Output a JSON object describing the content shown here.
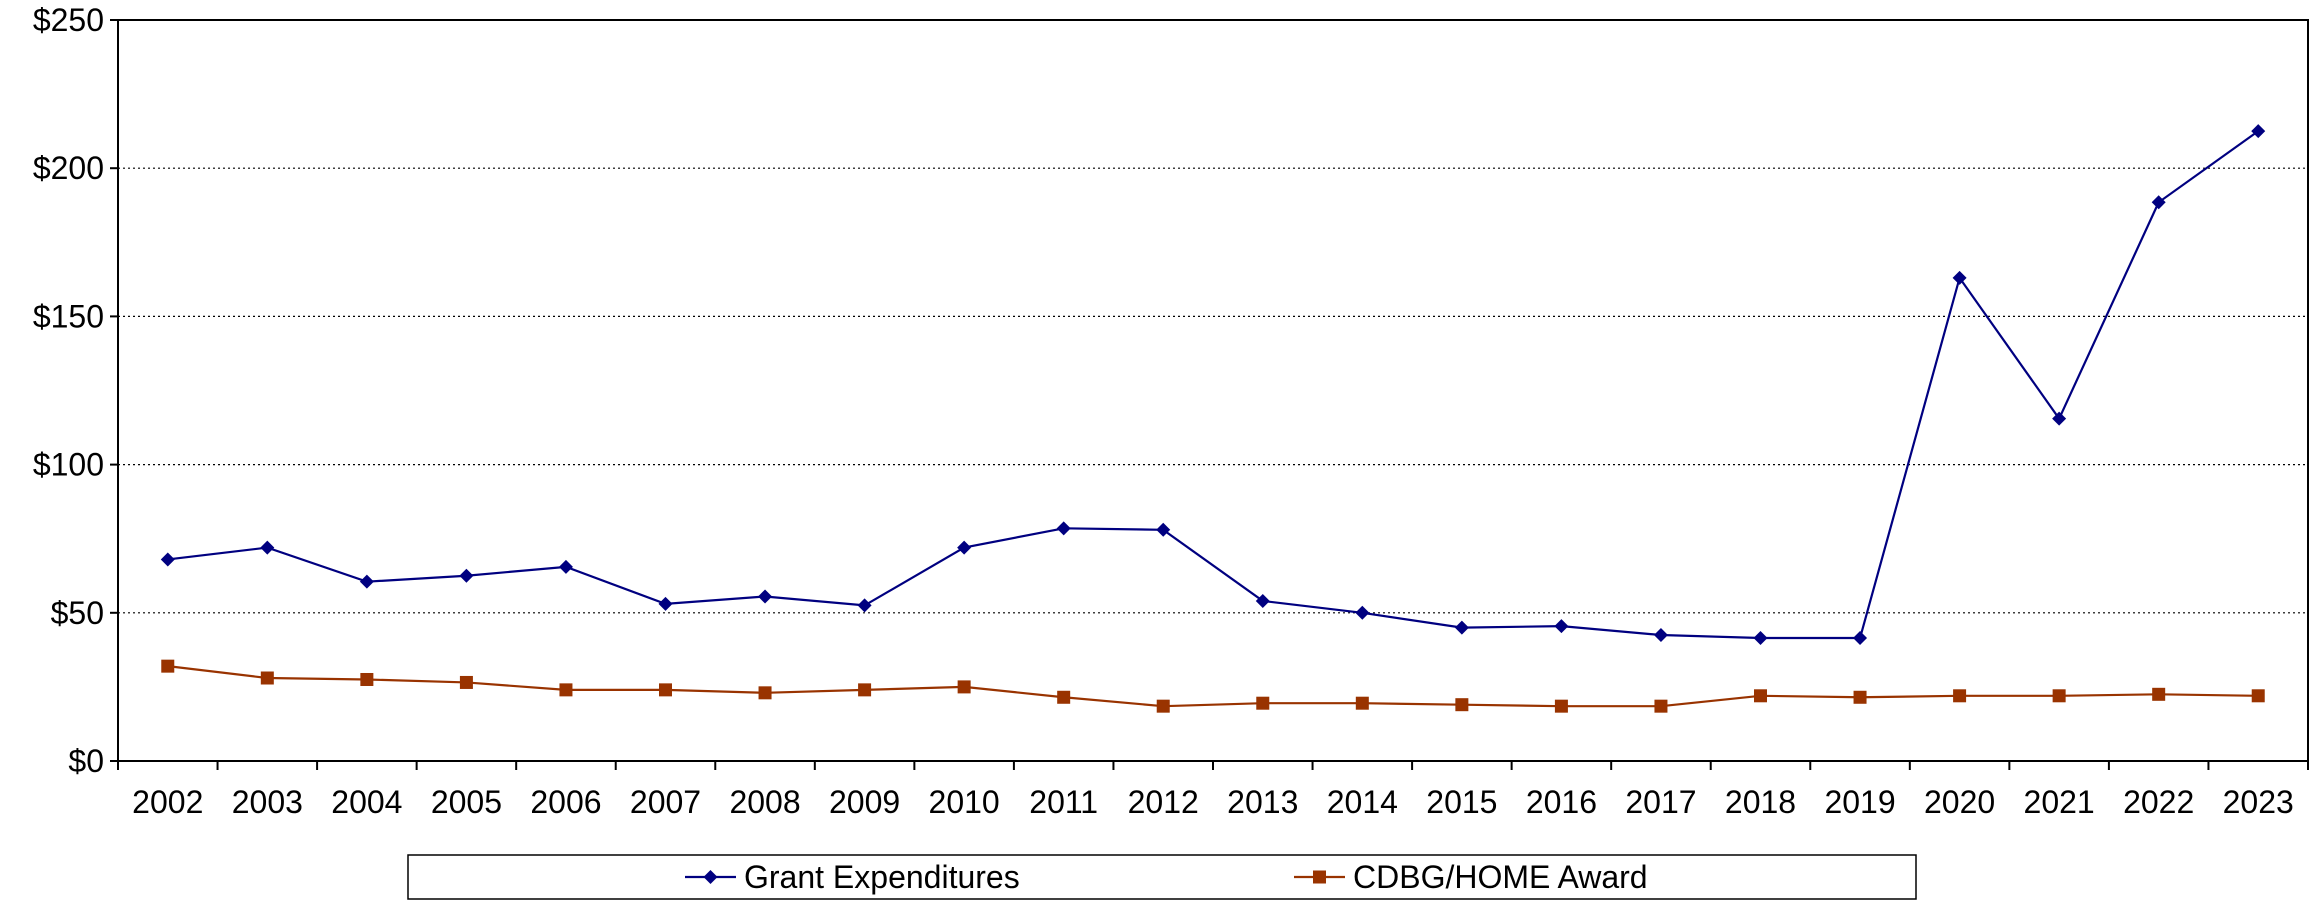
{
  "chart_data": {
    "type": "line",
    "title": "",
    "xlabel": "",
    "ylabel": "",
    "categories": [
      "2002",
      "2003",
      "2004",
      "2005",
      "2006",
      "2007",
      "2008",
      "2009",
      "2010",
      "2011",
      "2012",
      "2013",
      "2014",
      "2015",
      "2016",
      "2017",
      "2018",
      "2019",
      "2020",
      "2021",
      "2022",
      "2023"
    ],
    "ylim": [
      0,
      250
    ],
    "yticks": [
      0,
      50,
      100,
      150,
      200,
      250
    ],
    "ytick_labels": [
      "$0",
      "$50",
      "$100",
      "$150",
      "$200",
      "$250"
    ],
    "grid": "horizontal dotted",
    "legend": "bottom",
    "series": [
      {
        "name": "Grant Expenditures",
        "color": "#000080",
        "marker": "diamond",
        "values": [
          68,
          72,
          60.5,
          62.5,
          65.5,
          53,
          55.5,
          52.5,
          72,
          78.5,
          78,
          54,
          50,
          45,
          45.5,
          42.5,
          41.5,
          41.5,
          163,
          115.5,
          188.5,
          212.5
        ]
      },
      {
        "name": "CDBG/HOME Award",
        "color": "#993300",
        "marker": "square",
        "values": [
          32,
          28,
          27.5,
          26.5,
          24,
          24,
          23,
          24,
          25,
          21.5,
          18.5,
          19.5,
          19.5,
          19,
          18.5,
          18.5,
          22,
          21.5,
          22,
          22,
          22.5,
          22
        ]
      }
    ]
  }
}
